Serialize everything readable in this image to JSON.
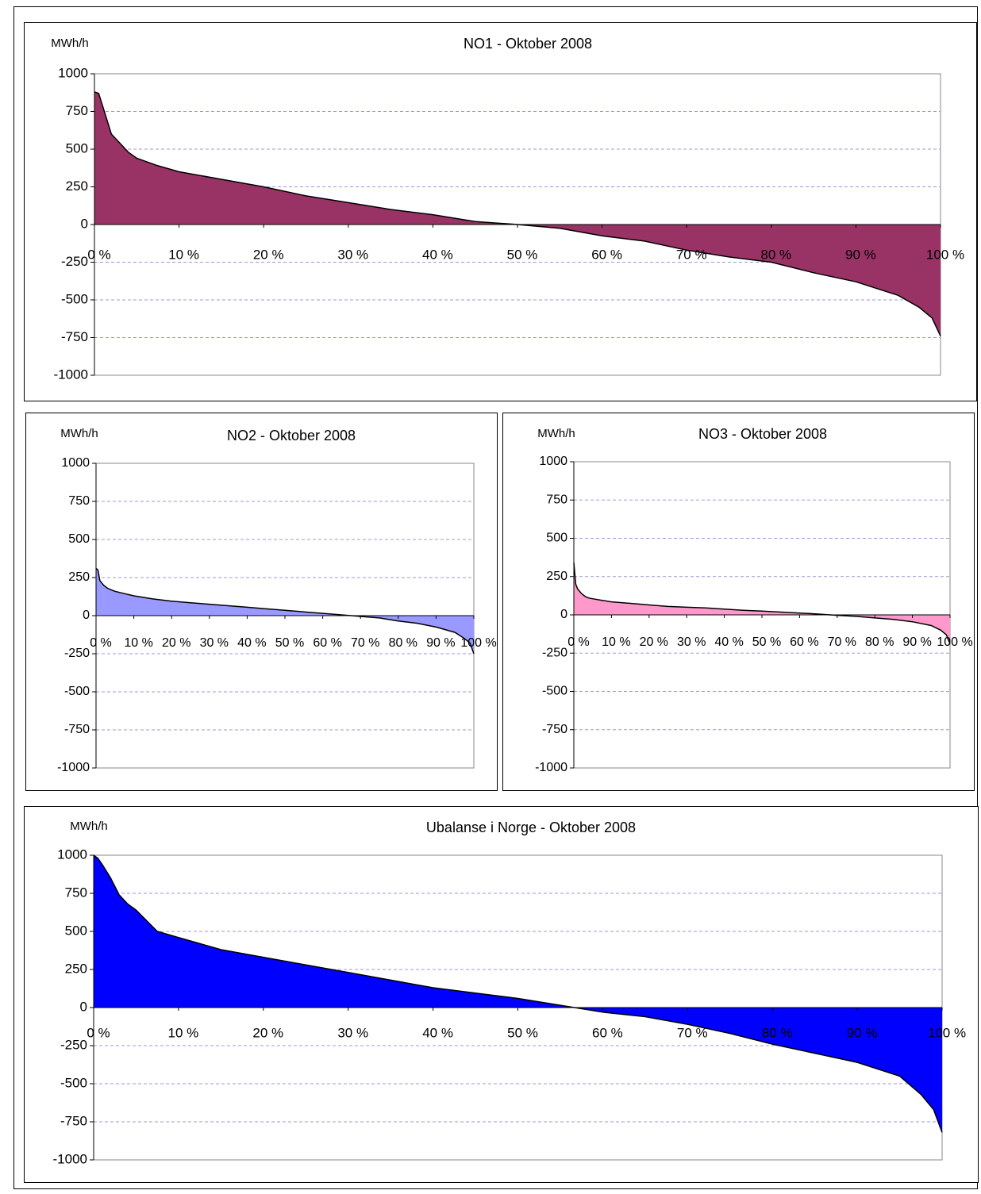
{
  "chart_data": [
    {
      "type": "area",
      "title": "NO1 - Oktober 2008",
      "y_label": "MWh/h",
      "color": "#993366",
      "grid": true,
      "x": [
        0,
        0.5,
        1,
        2,
        3,
        4,
        5,
        7.5,
        10,
        15,
        20,
        25,
        30,
        35,
        40,
        45,
        50,
        55,
        60,
        65,
        70,
        75,
        80,
        85,
        90,
        95,
        97.5,
        99,
        100
      ],
      "values": [
        880,
        870,
        780,
        600,
        540,
        480,
        440,
        390,
        350,
        300,
        250,
        190,
        145,
        100,
        65,
        20,
        0,
        -25,
        -75,
        -110,
        -170,
        -215,
        -250,
        -320,
        -380,
        -470,
        -550,
        -620,
        -740
      ],
      "xlim": [
        0,
        100
      ],
      "ylim": [
        -1000,
        1000
      ],
      "xticks": [
        {
          "value": 0,
          "label": "0 %"
        },
        {
          "value": 10,
          "label": "10 %"
        },
        {
          "value": 20,
          "label": "20 %"
        },
        {
          "value": 30,
          "label": "30 %"
        },
        {
          "value": 40,
          "label": "40 %"
        },
        {
          "value": 50,
          "label": "50 %"
        },
        {
          "value": 60,
          "label": "60 %"
        },
        {
          "value": 70,
          "label": "70 %"
        },
        {
          "value": 80,
          "label": "80 %"
        },
        {
          "value": 90,
          "label": "90 %"
        },
        {
          "value": 100,
          "label": "100 %"
        }
      ],
      "yticks": [
        -1000,
        -750,
        -500,
        -250,
        0,
        250,
        500,
        750,
        1000
      ]
    },
    {
      "type": "area",
      "title": "NO2 -  Oktober 2008",
      "y_label": "MWh/h",
      "color": "#9999ff",
      "grid": true,
      "x": [
        0,
        0.5,
        1,
        2,
        3,
        4,
        5,
        7.5,
        10,
        15,
        20,
        25,
        30,
        35,
        40,
        45,
        50,
        55,
        60,
        65,
        70,
        75,
        80,
        85,
        90,
        95,
        97.5,
        99,
        100
      ],
      "values": [
        310,
        300,
        230,
        200,
        180,
        170,
        160,
        145,
        130,
        110,
        95,
        85,
        75,
        65,
        55,
        45,
        35,
        25,
        15,
        5,
        -5,
        -15,
        -35,
        -50,
        -75,
        -110,
        -150,
        -180,
        -250
      ],
      "xlim": [
        0,
        100
      ],
      "ylim": [
        -1000,
        1000
      ],
      "xticks": [
        {
          "value": 0,
          "label": "0 %"
        },
        {
          "value": 10,
          "label": "10 %"
        },
        {
          "value": 20,
          "label": "20 %"
        },
        {
          "value": 30,
          "label": "30 %"
        },
        {
          "value": 40,
          "label": "40 %"
        },
        {
          "value": 50,
          "label": "50 %"
        },
        {
          "value": 60,
          "label": "60 %"
        },
        {
          "value": 70,
          "label": "70 %"
        },
        {
          "value": 80,
          "label": "80 %"
        },
        {
          "value": 90,
          "label": "90 %"
        },
        {
          "value": 100,
          "label": "100 %"
        }
      ],
      "yticks": [
        -1000,
        -750,
        -500,
        -250,
        0,
        250,
        500,
        750,
        1000
      ]
    },
    {
      "type": "area",
      "title": "NO3 - Oktober 2008",
      "y_label": "MWh/h",
      "color": "#ff99cc",
      "grid": true,
      "x": [
        0,
        0.5,
        1,
        2,
        3,
        4,
        5,
        7.5,
        10,
        15,
        20,
        25,
        30,
        35,
        40,
        45,
        50,
        55,
        60,
        65,
        70,
        75,
        80,
        85,
        90,
        95,
        97.5,
        99,
        100
      ],
      "values": [
        340,
        200,
        170,
        140,
        120,
        110,
        105,
        95,
        85,
        75,
        65,
        55,
        50,
        45,
        38,
        30,
        25,
        18,
        12,
        5,
        -3,
        -10,
        -20,
        -30,
        -45,
        -70,
        -100,
        -130,
        -190
      ],
      "xlim": [
        0,
        100
      ],
      "ylim": [
        -1000,
        1000
      ],
      "xticks": [
        {
          "value": 0,
          "label": "0 %"
        },
        {
          "value": 10,
          "label": "10 %"
        },
        {
          "value": 20,
          "label": "20 %"
        },
        {
          "value": 30,
          "label": "30 %"
        },
        {
          "value": 40,
          "label": "40 %"
        },
        {
          "value": 50,
          "label": "50 %"
        },
        {
          "value": 60,
          "label": "60 %"
        },
        {
          "value": 70,
          "label": "70 %"
        },
        {
          "value": 80,
          "label": "80 %"
        },
        {
          "value": 90,
          "label": "90 %"
        },
        {
          "value": 100,
          "label": "100 %"
        }
      ],
      "yticks": [
        -1000,
        -750,
        -500,
        -250,
        0,
        250,
        500,
        750,
        1000
      ]
    },
    {
      "type": "area",
      "title": "Ubalanse i Norge -  Oktober 2008",
      "y_label": "MWh/h",
      "color": "#0000ff",
      "grid": true,
      "x": [
        0,
        0.5,
        1,
        2,
        3,
        4,
        5,
        7.5,
        10,
        15,
        20,
        25,
        30,
        35,
        40,
        45,
        50,
        55,
        60,
        65,
        70,
        75,
        80,
        85,
        90,
        95,
        97.5,
        99,
        100
      ],
      "values": [
        1000,
        980,
        940,
        850,
        740,
        680,
        640,
        500,
        460,
        380,
        330,
        280,
        230,
        180,
        130,
        95,
        60,
        15,
        -30,
        -60,
        -110,
        -170,
        -240,
        -300,
        -360,
        -450,
        -570,
        -670,
        -820
      ],
      "xlim": [
        0,
        100
      ],
      "ylim": [
        -1000,
        1000
      ],
      "xticks": [
        {
          "value": 0,
          "label": "0 %"
        },
        {
          "value": 10,
          "label": "10 %"
        },
        {
          "value": 20,
          "label": "20 %"
        },
        {
          "value": 30,
          "label": "30 %"
        },
        {
          "value": 40,
          "label": "40 %"
        },
        {
          "value": 50,
          "label": "50 %"
        },
        {
          "value": 60,
          "label": "60 %"
        },
        {
          "value": 70,
          "label": "70 %"
        },
        {
          "value": 80,
          "label": "80 %"
        },
        {
          "value": 90,
          "label": "90 %"
        },
        {
          "value": 100,
          "label": "100 %"
        }
      ],
      "yticks": [
        -1000,
        -750,
        -500,
        -250,
        0,
        250,
        500,
        750,
        1000
      ]
    }
  ]
}
